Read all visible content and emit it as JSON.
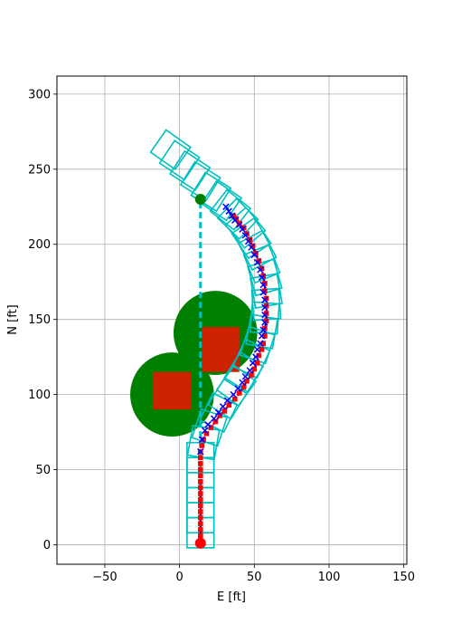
{
  "chart_data": {
    "type": "scatter",
    "title": "",
    "xlabel": "E [ft]",
    "ylabel": "N [ft]",
    "xlim": [
      -82,
      152
    ],
    "ylim": [
      -13,
      312
    ],
    "grid": true,
    "x_ticks": [
      -50,
      0,
      50,
      100,
      150
    ],
    "y_ticks": [
      0,
      50,
      100,
      150,
      200,
      250,
      300
    ],
    "colors": {
      "obstacle_circle": "#008000",
      "obstacle_rect": "#cc2200",
      "footprint": "#00bfbf",
      "path_marker": "#ff0000",
      "path_line": "#00008b",
      "estimate": "#0000ff",
      "start": "#ff0000",
      "goal": "#008000",
      "goal_link": "#00bfbf"
    },
    "obstacles": [
      {
        "type": "circle",
        "center": [
          -5,
          100
        ],
        "radius": 28
      },
      {
        "type": "circle",
        "center": [
          24,
          141
        ],
        "radius": 28
      },
      {
        "type": "rect",
        "x": [
          -18,
          8
        ],
        "y": [
          90,
          115
        ]
      },
      {
        "type": "rect",
        "x": [
          15,
          40
        ],
        "y": [
          115,
          145
        ]
      }
    ],
    "start": [
      14,
      1
    ],
    "goal": [
      14,
      230
    ],
    "goal_link": [
      [
        14,
        5
      ],
      [
        14,
        230
      ]
    ],
    "footprint_size": [
      18,
      20
    ],
    "footprints": [
      {
        "center": [
          14,
          8
        ],
        "heading": 0
      },
      {
        "center": [
          14,
          18
        ],
        "heading": 0
      },
      {
        "center": [
          14,
          28
        ],
        "heading": 0
      },
      {
        "center": [
          14,
          38
        ],
        "heading": 0
      },
      {
        "center": [
          14,
          48
        ],
        "heading": 0
      },
      {
        "center": [
          14,
          58
        ],
        "heading": 0
      },
      {
        "center": [
          16,
          68
        ],
        "heading": 10
      },
      {
        "center": [
          20,
          78
        ],
        "heading": 18
      },
      {
        "center": [
          26,
          88
        ],
        "heading": 26
      },
      {
        "center": [
          32,
          97
        ],
        "heading": 32
      },
      {
        "center": [
          38,
          106
        ],
        "heading": 36
      },
      {
        "center": [
          43,
          115
        ],
        "heading": 32
      },
      {
        "center": [
          48,
          124
        ],
        "heading": 25
      },
      {
        "center": [
          52,
          133
        ],
        "heading": 18
      },
      {
        "center": [
          55,
          142
        ],
        "heading": 10
      },
      {
        "center": [
          57,
          151
        ],
        "heading": 4
      },
      {
        "center": [
          58,
          160
        ],
        "heading": -4
      },
      {
        "center": [
          58,
          169
        ],
        "heading": -10
      },
      {
        "center": [
          57,
          178
        ],
        "heading": -16
      },
      {
        "center": [
          55,
          187
        ],
        "heading": -22
      },
      {
        "center": [
          52,
          196
        ],
        "heading": -28
      },
      {
        "center": [
          48,
          204
        ],
        "heading": -34
      },
      {
        "center": [
          44,
          211
        ],
        "heading": -40
      },
      {
        "center": [
          39,
          217
        ],
        "heading": -46
      },
      {
        "center": [
          34,
          223
        ],
        "heading": -52
      },
      {
        "center": [
          28,
          229
        ],
        "heading": -56
      },
      {
        "center": [
          21,
          235
        ],
        "heading": -58
      },
      {
        "center": [
          14,
          242
        ],
        "heading": -58
      },
      {
        "center": [
          7,
          249
        ],
        "heading": -57
      },
      {
        "center": [
          0,
          256
        ],
        "heading": -56
      },
      {
        "center": [
          -6,
          263
        ],
        "heading": -55
      }
    ],
    "path": [
      [
        14,
        2
      ],
      [
        14,
        6
      ],
      [
        14,
        10
      ],
      [
        14,
        14
      ],
      [
        14,
        18
      ],
      [
        14,
        22
      ],
      [
        14,
        26
      ],
      [
        14,
        30
      ],
      [
        14,
        34
      ],
      [
        14,
        38
      ],
      [
        14,
        42
      ],
      [
        14,
        46
      ],
      [
        14,
        50
      ],
      [
        14,
        54
      ],
      [
        14,
        58
      ],
      [
        14,
        62
      ],
      [
        15,
        66
      ],
      [
        16,
        70
      ],
      [
        18,
        74
      ],
      [
        21,
        78
      ],
      [
        24,
        82
      ],
      [
        27,
        86
      ],
      [
        30,
        89
      ],
      [
        33,
        93
      ],
      [
        37,
        97
      ],
      [
        40,
        101
      ],
      [
        43,
        105
      ],
      [
        45,
        109
      ],
      [
        48,
        113
      ],
      [
        50,
        117
      ],
      [
        52,
        121
      ],
      [
        53,
        126
      ],
      [
        55,
        130
      ],
      [
        56,
        134
      ],
      [
        57,
        139
      ],
      [
        57,
        144
      ],
      [
        58,
        149
      ],
      [
        58,
        154
      ],
      [
        58,
        159
      ],
      [
        58,
        164
      ],
      [
        57,
        169
      ],
      [
        57,
        174
      ],
      [
        56,
        179
      ],
      [
        55,
        184
      ],
      [
        53,
        189
      ],
      [
        51,
        194
      ],
      [
        49,
        199
      ],
      [
        47,
        203
      ],
      [
        45,
        207
      ],
      [
        43,
        211
      ],
      [
        40,
        214
      ],
      [
        38,
        217
      ],
      [
        36,
        219
      ]
    ],
    "estimates": [
      [
        14,
        62
      ],
      [
        15,
        70
      ],
      [
        17,
        76
      ],
      [
        19,
        80
      ],
      [
        23,
        84
      ],
      [
        26,
        88
      ],
      [
        29,
        92
      ],
      [
        32,
        96
      ],
      [
        36,
        100
      ],
      [
        39,
        104
      ],
      [
        42,
        108
      ],
      [
        44,
        112
      ],
      [
        47,
        116
      ],
      [
        49,
        121
      ],
      [
        51,
        125
      ],
      [
        52,
        130
      ],
      [
        54,
        134
      ],
      [
        55,
        139
      ],
      [
        56,
        143
      ],
      [
        57,
        148
      ],
      [
        57,
        153
      ],
      [
        57,
        158
      ],
      [
        57,
        163
      ],
      [
        56,
        168
      ],
      [
        56,
        173
      ],
      [
        55,
        178
      ],
      [
        54,
        183
      ],
      [
        52,
        188
      ],
      [
        50,
        193
      ],
      [
        48,
        198
      ],
      [
        46,
        202
      ],
      [
        44,
        206
      ],
      [
        42,
        210
      ],
      [
        40,
        213
      ],
      [
        37,
        216
      ],
      [
        35,
        219
      ],
      [
        33,
        222
      ],
      [
        31,
        225
      ]
    ]
  }
}
